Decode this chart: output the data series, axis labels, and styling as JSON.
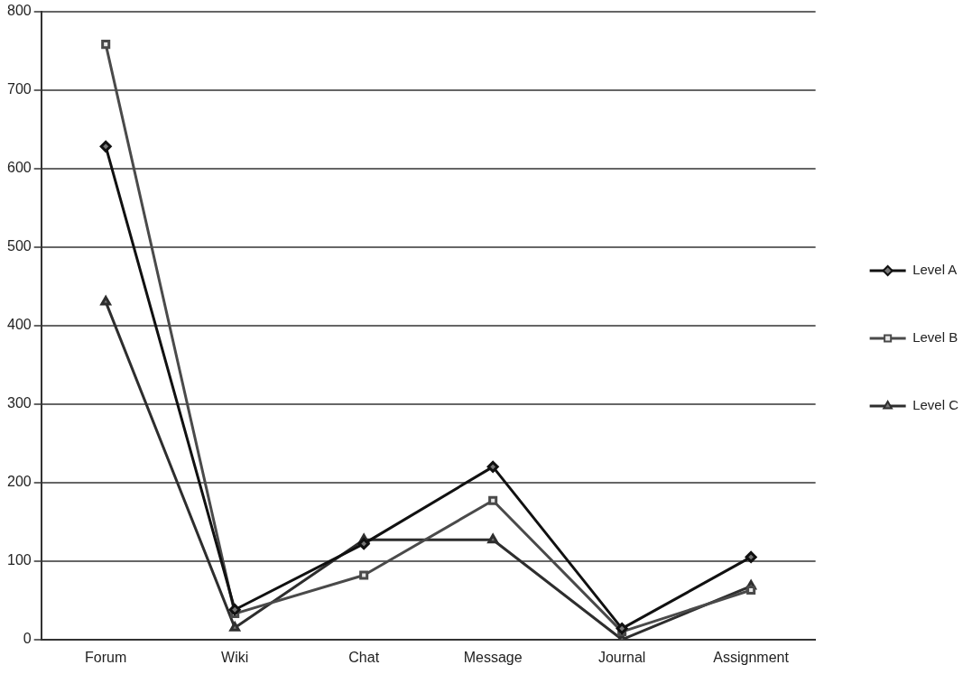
{
  "chart_data": {
    "type": "line",
    "categories": [
      "Forum",
      "Wiki",
      "Chat",
      "Message",
      "Journal",
      "Assignment"
    ],
    "series": [
      {
        "name": "Level A",
        "color": "#111111",
        "marker": "diamond",
        "values": [
          628,
          38,
          122,
          220,
          14,
          105
        ]
      },
      {
        "name": "Level B",
        "color": "#4a4a4a",
        "marker": "square",
        "values": [
          758,
          33,
          82,
          177,
          10,
          63
        ]
      },
      {
        "name": "Level C",
        "color": "#2e2e2e",
        "marker": "triangle",
        "values": [
          430,
          15,
          127,
          127,
          0,
          68
        ]
      }
    ],
    "ylim": [
      0,
      800
    ],
    "yticks": [
      0,
      100,
      200,
      300,
      400,
      500,
      600,
      700,
      800
    ],
    "grid": "y",
    "legend": "right",
    "line_style": "solid"
  }
}
